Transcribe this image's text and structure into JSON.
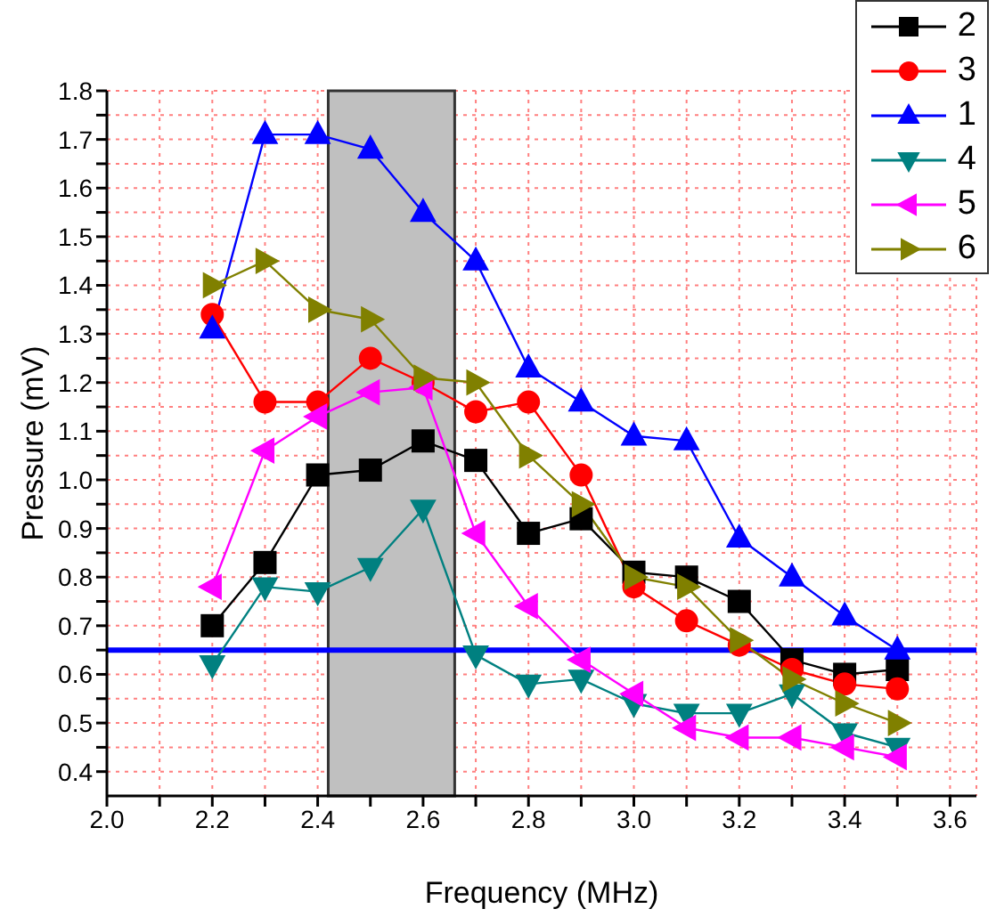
{
  "chart_data": {
    "type": "line",
    "xlabel": "Frequency (MHz)",
    "ylabel": "Pressure (mV)",
    "x": [
      2.2,
      2.3,
      2.4,
      2.5,
      2.6,
      2.7,
      2.8,
      2.9,
      3.0,
      3.1,
      3.2,
      3.3,
      3.4,
      3.5
    ],
    "series": [
      {
        "name": "2",
        "color": "#000000",
        "marker": "square",
        "values": [
          0.7,
          0.83,
          1.01,
          1.02,
          1.08,
          1.04,
          0.89,
          0.92,
          0.81,
          0.8,
          0.75,
          0.63,
          0.6,
          0.61
        ]
      },
      {
        "name": "3",
        "color": "#ff0000",
        "marker": "circle",
        "values": [
          1.34,
          1.16,
          1.16,
          1.25,
          1.2,
          1.14,
          1.16,
          1.01,
          0.78,
          0.71,
          0.66,
          0.61,
          0.58,
          0.57
        ]
      },
      {
        "name": "1",
        "color": "#0000ff",
        "marker": "triangle",
        "values": [
          1.31,
          1.71,
          1.71,
          1.68,
          1.55,
          1.45,
          1.23,
          1.16,
          1.09,
          1.08,
          0.88,
          0.8,
          0.72,
          0.65
        ]
      },
      {
        "name": "4",
        "color": "#008080",
        "marker": "triangle-down",
        "values": [
          0.62,
          0.78,
          0.77,
          0.82,
          0.94,
          0.64,
          0.58,
          0.59,
          0.54,
          0.52,
          0.52,
          0.56,
          0.48,
          0.45
        ]
      },
      {
        "name": "5",
        "color": "#ff00ff",
        "marker": "triangle-left",
        "values": [
          0.78,
          1.06,
          1.13,
          1.18,
          1.19,
          0.89,
          0.74,
          0.63,
          0.56,
          0.49,
          0.47,
          0.47,
          0.45,
          0.43
        ]
      },
      {
        "name": "6",
        "color": "#808000",
        "marker": "triangle-right",
        "values": [
          1.4,
          1.45,
          1.35,
          1.33,
          1.21,
          1.2,
          1.05,
          0.95,
          0.8,
          0.78,
          0.67,
          0.59,
          0.54,
          0.5
        ]
      }
    ],
    "xlim": [
      2.0,
      3.65
    ],
    "xticks": [
      {
        "value": 2.0,
        "label": "2.0"
      },
      {
        "value": 2.1,
        "label": null
      },
      2.2,
      {
        "value": 2.3,
        "label": null
      },
      2.4,
      {
        "value": 2.5,
        "label": null
      },
      2.6,
      {
        "value": 2.7,
        "label": null
      },
      2.8,
      {
        "value": 2.9,
        "label": null
      },
      {
        "value": 3.0,
        "label": "3.0"
      },
      {
        "value": 3.1,
        "label": null
      },
      3.2,
      {
        "value": 3.3,
        "label": null
      },
      3.4,
      {
        "value": 3.5,
        "label": null
      },
      3.6
    ],
    "ylim": [
      0.35,
      1.8
    ],
    "yticks": [
      0.4,
      {
        "value": 0.45,
        "label": null
      },
      0.5,
      {
        "value": 0.55,
        "label": null
      },
      0.6,
      {
        "value": 0.65,
        "label": null
      },
      0.7,
      {
        "value": 0.75,
        "label": null
      },
      0.8,
      {
        "value": 0.85,
        "label": null
      },
      0.9,
      {
        "value": 0.95,
        "label": null
      },
      {
        "value": 1.0,
        "label": "1.0"
      },
      {
        "value": 1.05,
        "label": null
      },
      1.1,
      {
        "value": 1.15,
        "label": null
      },
      1.2,
      {
        "value": 1.25,
        "label": null
      },
      1.3,
      {
        "value": 1.35,
        "label": null
      },
      1.4,
      {
        "value": 1.45,
        "label": null
      },
      1.5,
      {
        "value": 1.55,
        "label": null
      },
      1.6,
      {
        "value": 1.65,
        "label": null
      },
      1.7,
      {
        "value": 1.75,
        "label": null
      },
      1.8
    ],
    "ref_lines": [
      {
        "axis": "y",
        "value": 0.65,
        "color": "#0000ff"
      }
    ],
    "bands": [
      {
        "axis": "x",
        "from": 2.42,
        "to": 2.66,
        "color": "#c0c0c0"
      }
    ],
    "grid": true,
    "legend": "top right"
  }
}
